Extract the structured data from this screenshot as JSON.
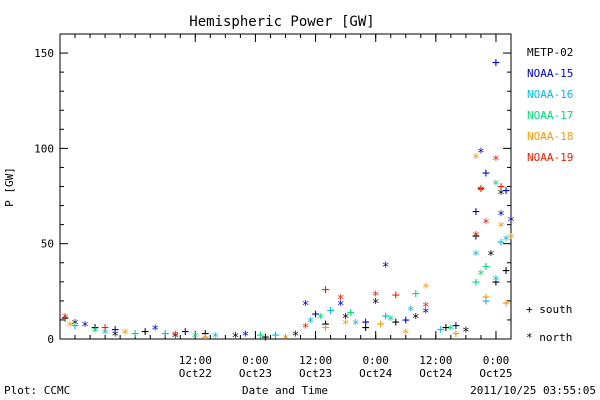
{
  "chart_data": {
    "type": "scatter",
    "title": "Hemispheric Power [GW]",
    "xlabel": "Date and Time",
    "ylabel": "P [GW]",
    "ylim": [
      0,
      160
    ],
    "yticks": [
      0,
      50,
      100,
      150
    ],
    "xlim": [
      "2011-10-21 09:00",
      "2011-10-25 03:00"
    ],
    "xticks": [
      {
        "x": "2011-10-22 12:00",
        "time": "12:00",
        "date": "Oct22"
      },
      {
        "x": "2011-10-23 00:00",
        "time": "0:00",
        "date": "Oct23"
      },
      {
        "x": "2011-10-23 12:00",
        "time": "12:00",
        "date": "Oct23"
      },
      {
        "x": "2011-10-24 00:00",
        "time": "0:00",
        "date": "Oct24"
      },
      {
        "x": "2011-10-24 12:00",
        "time": "12:00",
        "date": "Oct24"
      },
      {
        "x": "2011-10-25 00:00",
        "time": "0:00",
        "date": "Oct25"
      }
    ],
    "marker_legend": [
      {
        "symbol": "+",
        "label": "south"
      },
      {
        "symbol": "*",
        "label": "north"
      }
    ],
    "series": [
      {
        "name": "METP-02",
        "color": "#000000",
        "points": [
          {
            "x": "2011-10-21 10:00",
            "y": 11,
            "m": "+"
          },
          {
            "x": "2011-10-21 12:00",
            "y": 9,
            "m": "*"
          },
          {
            "x": "2011-10-21 16:00",
            "y": 6,
            "m": "+"
          },
          {
            "x": "2011-10-21 20:00",
            "y": 3,
            "m": "*"
          },
          {
            "x": "2011-10-22 02:00",
            "y": 4,
            "m": "+"
          },
          {
            "x": "2011-10-22 08:00",
            "y": 2,
            "m": "*"
          },
          {
            "x": "2011-10-22 14:00",
            "y": 3,
            "m": "+"
          },
          {
            "x": "2011-10-22 20:00",
            "y": 2,
            "m": "*"
          },
          {
            "x": "2011-10-23 02:00",
            "y": 1,
            "m": "+"
          },
          {
            "x": "2011-10-23 08:00",
            "y": 3,
            "m": "*"
          },
          {
            "x": "2011-10-23 14:00",
            "y": 8,
            "m": "+"
          },
          {
            "x": "2011-10-23 18:00",
            "y": 12,
            "m": "*"
          },
          {
            "x": "2011-10-23 22:00",
            "y": 6,
            "m": "+"
          },
          {
            "x": "2011-10-24 00:00",
            "y": 20,
            "m": "*"
          },
          {
            "x": "2011-10-24 04:00",
            "y": 9,
            "m": "+"
          },
          {
            "x": "2011-10-24 08:00",
            "y": 12,
            "m": "*"
          },
          {
            "x": "2011-10-24 14:00",
            "y": 6,
            "m": "+"
          },
          {
            "x": "2011-10-24 18:00",
            "y": 5,
            "m": "*"
          },
          {
            "x": "2011-10-24 20:00",
            "y": 54,
            "m": "+"
          },
          {
            "x": "2011-10-24 21:00",
            "y": 79,
            "m": "*"
          },
          {
            "x": "2011-10-24 23:00",
            "y": 45,
            "m": "*"
          },
          {
            "x": "2011-10-25 00:00",
            "y": 30,
            "m": "+"
          },
          {
            "x": "2011-10-25 01:00",
            "y": 77,
            "m": "*"
          },
          {
            "x": "2011-10-25 02:00",
            "y": 36,
            "m": "+"
          }
        ]
      },
      {
        "name": "NOAA-15",
        "color": "#0000cc",
        "points": [
          {
            "x": "2011-10-21 14:00",
            "y": 8,
            "m": "*"
          },
          {
            "x": "2011-10-21 20:00",
            "y": 5,
            "m": "+"
          },
          {
            "x": "2011-10-22 04:00",
            "y": 6,
            "m": "*"
          },
          {
            "x": "2011-10-22 10:00",
            "y": 4,
            "m": "+"
          },
          {
            "x": "2011-10-22 22:00",
            "y": 3,
            "m": "*"
          },
          {
            "x": "2011-10-23 10:00",
            "y": 19,
            "m": "*"
          },
          {
            "x": "2011-10-23 12:00",
            "y": 13,
            "m": "+"
          },
          {
            "x": "2011-10-23 17:00",
            "y": 19,
            "m": "*"
          },
          {
            "x": "2011-10-23 22:00",
            "y": 9,
            "m": "+"
          },
          {
            "x": "2011-10-24 02:00",
            "y": 39,
            "m": "*"
          },
          {
            "x": "2011-10-24 06:00",
            "y": 10,
            "m": "+"
          },
          {
            "x": "2011-10-24 10:00",
            "y": 15,
            "m": "*"
          },
          {
            "x": "2011-10-24 16:00",
            "y": 7,
            "m": "+"
          },
          {
            "x": "2011-10-24 20:00",
            "y": 67,
            "m": "+"
          },
          {
            "x": "2011-10-24 21:00",
            "y": 99,
            "m": "*"
          },
          {
            "x": "2011-10-24 22:00",
            "y": 87,
            "m": "+"
          },
          {
            "x": "2011-10-25 00:00",
            "y": 145,
            "m": "+"
          },
          {
            "x": "2011-10-25 01:00",
            "y": 66,
            "m": "*"
          },
          {
            "x": "2011-10-25 02:00",
            "y": 78,
            "m": "+"
          },
          {
            "x": "2011-10-25 03:00",
            "y": 63,
            "m": "*"
          }
        ]
      },
      {
        "name": "NOAA-16",
        "color": "#00bbee",
        "points": [
          {
            "x": "2011-10-21 12:00",
            "y": 7,
            "m": "+"
          },
          {
            "x": "2011-10-21 18:00",
            "y": 4,
            "m": "*"
          },
          {
            "x": "2011-10-22 06:00",
            "y": 3,
            "m": "+"
          },
          {
            "x": "2011-10-22 16:00",
            "y": 2,
            "m": "*"
          },
          {
            "x": "2011-10-23 04:00",
            "y": 2,
            "m": "+"
          },
          {
            "x": "2011-10-23 11:00",
            "y": 10,
            "m": "*"
          },
          {
            "x": "2011-10-23 15:00",
            "y": 15,
            "m": "+"
          },
          {
            "x": "2011-10-23 20:00",
            "y": 9,
            "m": "*"
          },
          {
            "x": "2011-10-24 02:00",
            "y": 12,
            "m": "+"
          },
          {
            "x": "2011-10-24 07:00",
            "y": 16,
            "m": "*"
          },
          {
            "x": "2011-10-24 13:00",
            "y": 5,
            "m": "+"
          },
          {
            "x": "2011-10-24 20:00",
            "y": 45,
            "m": "*"
          },
          {
            "x": "2011-10-24 22:00",
            "y": 20,
            "m": "+"
          },
          {
            "x": "2011-10-25 00:00",
            "y": 32,
            "m": "*"
          },
          {
            "x": "2011-10-25 01:00",
            "y": 51,
            "m": "+"
          },
          {
            "x": "2011-10-25 02:00",
            "y": 53,
            "m": "*"
          }
        ]
      },
      {
        "name": "NOAA-17",
        "color": "#00dd77",
        "points": [
          {
            "x": "2011-10-21 16:00",
            "y": 5,
            "m": "*"
          },
          {
            "x": "2011-10-22 00:00",
            "y": 3,
            "m": "+"
          },
          {
            "x": "2011-10-22 12:00",
            "y": 2,
            "m": "*"
          },
          {
            "x": "2011-10-23 01:00",
            "y": 2,
            "m": "+"
          },
          {
            "x": "2011-10-23 13:00",
            "y": 12,
            "m": "*"
          },
          {
            "x": "2011-10-23 19:00",
            "y": 14,
            "m": "+"
          },
          {
            "x": "2011-10-24 03:00",
            "y": 11,
            "m": "*"
          },
          {
            "x": "2011-10-24 08:00",
            "y": 24,
            "m": "+"
          },
          {
            "x": "2011-10-24 15:00",
            "y": 6,
            "m": "*"
          },
          {
            "x": "2011-10-24 20:00",
            "y": 30,
            "m": "+"
          },
          {
            "x": "2011-10-24 21:00",
            "y": 35,
            "m": "*"
          },
          {
            "x": "2011-10-24 22:00",
            "y": 38,
            "m": "+"
          },
          {
            "x": "2011-10-25 00:00",
            "y": 82,
            "m": "*"
          }
        ]
      },
      {
        "name": "NOAA-18",
        "color": "#ff9900",
        "points": [
          {
            "x": "2011-10-21 11:00",
            "y": 8,
            "m": "*"
          },
          {
            "x": "2011-10-21 22:00",
            "y": 4,
            "m": "*"
          },
          {
            "x": "2011-10-22 14:00",
            "y": 1,
            "m": "+"
          },
          {
            "x": "2011-10-23 06:00",
            "y": 1,
            "m": "*"
          },
          {
            "x": "2011-10-23 14:00",
            "y": 6,
            "m": "+"
          },
          {
            "x": "2011-10-23 18:00",
            "y": 9,
            "m": "*"
          },
          {
            "x": "2011-10-24 01:00",
            "y": 8,
            "m": "+"
          },
          {
            "x": "2011-10-24 06:00",
            "y": 4,
            "m": "*"
          },
          {
            "x": "2011-10-24 10:00",
            "y": 28,
            "m": "*"
          },
          {
            "x": "2011-10-24 16:00",
            "y": 3,
            "m": "+"
          },
          {
            "x": "2011-10-24 20:00",
            "y": 96,
            "m": "*"
          },
          {
            "x": "2011-10-24 22:00",
            "y": 22,
            "m": "+"
          },
          {
            "x": "2011-10-25 01:00",
            "y": 60,
            "m": "*"
          },
          {
            "x": "2011-10-25 02:00",
            "y": 19,
            "m": "+"
          },
          {
            "x": "2011-10-25 03:00",
            "y": 54,
            "m": "*"
          }
        ]
      },
      {
        "name": "NOAA-19",
        "color": "#ee2200",
        "points": [
          {
            "x": "2011-10-21 10:00",
            "y": 12,
            "m": "*"
          },
          {
            "x": "2011-10-21 18:00",
            "y": 6,
            "m": "+"
          },
          {
            "x": "2011-10-22 08:00",
            "y": 3,
            "m": "*"
          },
          {
            "x": "2011-10-23 10:00",
            "y": 7,
            "m": "*"
          },
          {
            "x": "2011-10-23 14:00",
            "y": 26,
            "m": "+"
          },
          {
            "x": "2011-10-23 17:00",
            "y": 22,
            "m": "*"
          },
          {
            "x": "2011-10-24 00:00",
            "y": 24,
            "m": "*"
          },
          {
            "x": "2011-10-24 04:00",
            "y": 23,
            "m": "+"
          },
          {
            "x": "2011-10-24 10:00",
            "y": 18,
            "m": "*"
          },
          {
            "x": "2011-10-24 20:00",
            "y": 55,
            "m": "*"
          },
          {
            "x": "2011-10-24 21:00",
            "y": 79,
            "m": "+"
          },
          {
            "x": "2011-10-24 22:00",
            "y": 62,
            "m": "*"
          },
          {
            "x": "2011-10-25 00:00",
            "y": 95,
            "m": "*"
          },
          {
            "x": "2011-10-25 01:00",
            "y": 80,
            "m": "+"
          }
        ]
      }
    ]
  },
  "footer": {
    "left": "Plot: CCMC",
    "right": "2011/10/25 03:55:05"
  }
}
